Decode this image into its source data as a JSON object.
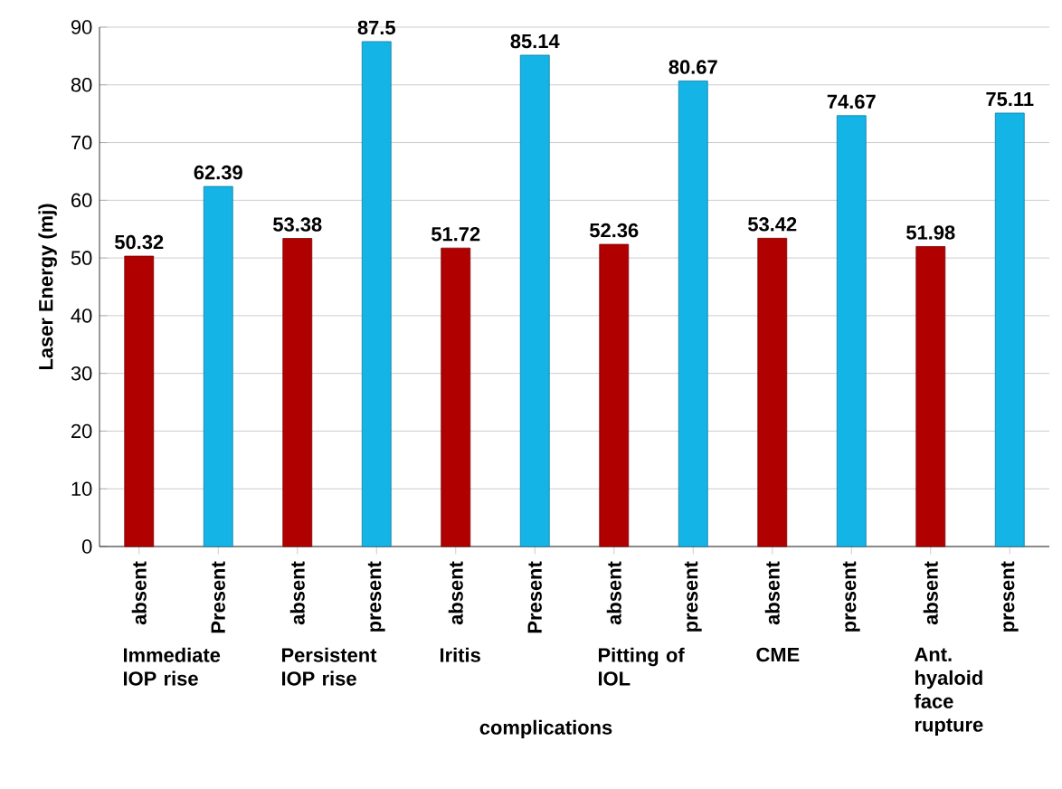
{
  "chart_data": {
    "type": "bar",
    "xlabel": "complications",
    "ylabel": "Laser Energy (mj)",
    "categories": [
      "absent",
      "Present",
      "absent",
      "present",
      "absent",
      "Present",
      "absent",
      "present",
      "absent",
      "present",
      "absent",
      "present"
    ],
    "values": [
      50.32,
      62.39,
      53.38,
      87.5,
      51.72,
      85.14,
      52.36,
      80.67,
      53.42,
      74.67,
      51.98,
      75.11
    ],
    "colors": [
      "#b00000",
      "#14b4e6",
      "#b00000",
      "#14b4e6",
      "#b00000",
      "#14b4e6",
      "#b00000",
      "#14b4e6",
      "#b00000",
      "#14b4e6",
      "#b00000",
      "#14b4e6"
    ],
    "annotations": [
      "Immediate IOP rise",
      "Persistent IOP rise",
      "Iritis",
      "Pitting of IOL",
      "CME",
      "Ant. hyaloid face rupture"
    ],
    "ylim": [
      0,
      90
    ],
    "yticks": [
      0,
      10,
      20,
      30,
      40,
      50,
      60,
      70,
      80,
      90
    ],
    "grid": "y",
    "data_labels": true
  }
}
